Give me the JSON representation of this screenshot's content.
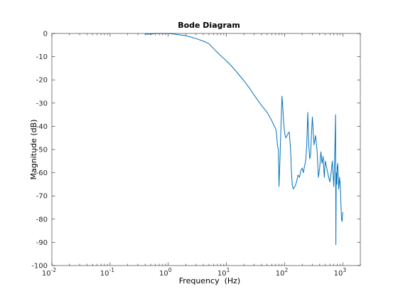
{
  "chart_data": {
    "type": "line",
    "title": "Bode Diagram",
    "xlabel": "Frequency  (Hz)",
    "ylabel": "Magnitude (dB)",
    "xscale": "log",
    "xlim": [
      0.01,
      2000
    ],
    "ylim": [
      -100,
      0
    ],
    "grid": false,
    "box": true,
    "xticks": [
      0.01,
      0.1,
      1,
      10,
      100,
      1000
    ],
    "xtick_labels": [
      {
        "base": "10",
        "exp": "-2"
      },
      {
        "base": "10",
        "exp": "-1"
      },
      {
        "base": "10",
        "exp": "0"
      },
      {
        "base": "10",
        "exp": "1"
      },
      {
        "base": "10",
        "exp": "2"
      },
      {
        "base": "10",
        "exp": "3"
      }
    ],
    "yticks": [
      0,
      -10,
      -20,
      -30,
      -40,
      -50,
      -60,
      -70,
      -80,
      -90,
      -100
    ],
    "ytick_labels": [
      "0",
      "-10",
      "-20",
      "-30",
      "-40",
      "-50",
      "-60",
      "-70",
      "-80",
      "-90",
      "-100"
    ],
    "series": [
      {
        "color": "#0072BD",
        "x": [
          0.4,
          0.5,
          0.55,
          0.6,
          0.7,
          0.8,
          0.9,
          1,
          1.2,
          1.5,
          2,
          2.5,
          3,
          4,
          5,
          6,
          7,
          8,
          10,
          12,
          15,
          20,
          25,
          30,
          40,
          50,
          55,
          60,
          65,
          70,
          73,
          75,
          78,
          80,
          83,
          86,
          90,
          93,
          96,
          100,
          105,
          110,
          115,
          120,
          125,
          128,
          130,
          135,
          140,
          150,
          160,
          170,
          180,
          190,
          200,
          210,
          220,
          230,
          240,
          250,
          255,
          260,
          270,
          280,
          290,
          300,
          320,
          340,
          360,
          380,
          400,
          420,
          440,
          460,
          480,
          500,
          530,
          560,
          600,
          630,
          660,
          700,
          730,
          750,
          760,
          770,
          790,
          800,
          820,
          850,
          880,
          900,
          920,
          950,
          970,
          1000
        ],
        "y": [
          -0.3,
          -0.3,
          -0.1,
          0,
          0,
          0,
          0,
          0,
          -0.2,
          -0.5,
          -1,
          -1.6,
          -2.2,
          -3.3,
          -4.4,
          -6.5,
          -8.2,
          -9.6,
          -11.8,
          -13.8,
          -16.6,
          -20.4,
          -23.6,
          -26.6,
          -31,
          -34,
          -35.8,
          -37.5,
          -39.5,
          -41,
          -43.5,
          -48,
          -50,
          -66,
          -55,
          -42,
          -27,
          -32,
          -38,
          -43,
          -45,
          -44,
          -43,
          -42.5,
          -48,
          -53,
          -58,
          -65,
          -67,
          -66,
          -64,
          -61,
          -62,
          -59,
          -58,
          -60,
          -57,
          -55,
          -48,
          -34,
          -41,
          -48,
          -54,
          -52,
          -43,
          -36,
          -48,
          -44,
          -50,
          -62,
          -58,
          -51,
          -56,
          -53,
          -62,
          -55,
          -58,
          -61,
          -64,
          -60,
          -55,
          -66,
          -50,
          -35,
          -91,
          -60,
          -65,
          -58,
          -56,
          -67,
          -62,
          -65,
          -71,
          -80,
          -81,
          -77
        ]
      }
    ]
  }
}
